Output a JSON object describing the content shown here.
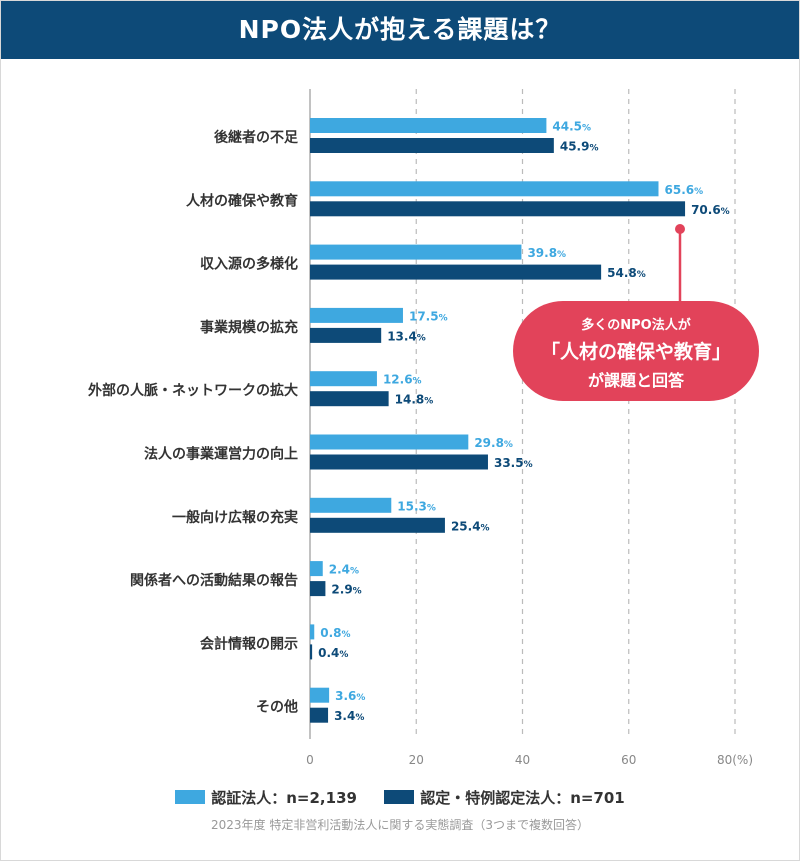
{
  "title": "NPO法人が抱える課題は？",
  "chart_data": {
    "type": "bar",
    "orientation": "horizontal",
    "categories": [
      "後継者の不足",
      "人材の確保や教育",
      "収入源の多様化",
      "事業規模の拡充",
      "外部の人脈・ネットワークの拡大",
      "法人の事業運営力の向上",
      "一般向け広報の充実",
      "関係者への活動結果の報告",
      "会計情報の開示",
      "その他"
    ],
    "series": [
      {
        "name": "認証法人：n=2,139",
        "color": "#3ea8e0",
        "values": [
          44.5,
          65.6,
          39.8,
          17.5,
          12.6,
          29.8,
          15.3,
          2.4,
          0.8,
          3.6
        ]
      },
      {
        "name": "認定・特例認定法人：n=701",
        "color": "#0d4a78",
        "values": [
          45.9,
          70.6,
          54.8,
          13.4,
          14.8,
          33.5,
          25.4,
          2.9,
          0.4,
          3.4
        ]
      }
    ],
    "value_suffix": "%",
    "xlim": [
      0,
      80
    ],
    "xticks": [
      "0",
      "20",
      "40",
      "60",
      "80(%)"
    ],
    "grid": "vertical dashed",
    "legend": "bottom"
  },
  "callout": {
    "line1": "多くのNPO法人が",
    "line2": "「人材の確保や教育」",
    "line3": "が課題と回答",
    "color": "#e2435a"
  },
  "legend": [
    "認証法人：n=2,139",
    "認定・特例認定法人：n=701"
  ],
  "note": "2023年度 特定非営利活動法人に関する実態調査（3つまで複数回答）"
}
